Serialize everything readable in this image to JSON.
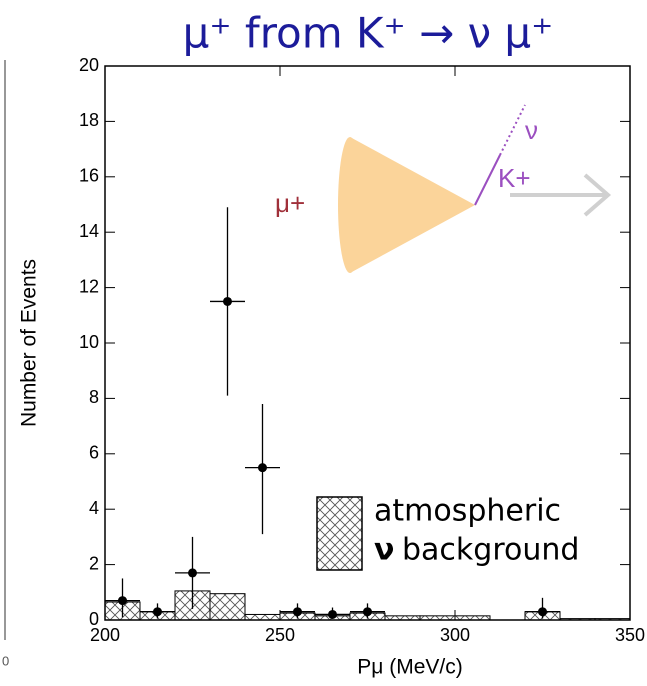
{
  "chart_data": {
    "type": "errorbar",
    "title": "μ⁺ from K⁺ → ν μ⁺",
    "x_label": "Pμ (MeV/c)",
    "y_label": "Number of Events",
    "x": [
      205,
      215,
      225,
      235,
      245,
      255,
      265,
      275,
      325
    ],
    "y": [
      0.7,
      0.3,
      1.7,
      11.5,
      5.5,
      0.3,
      0.2,
      0.3,
      0.3
    ],
    "yerr_low": [
      0.6,
      0.25,
      1.3,
      3.4,
      2.4,
      0.25,
      0.15,
      0.25,
      0.25
    ],
    "yerr_high": [
      0.8,
      0.3,
      1.3,
      3.4,
      2.3,
      0.3,
      0.25,
      0.3,
      0.5
    ],
    "xerr": 5,
    "color": "#000000",
    "background": {
      "bins": [
        200,
        210,
        220,
        230,
        240,
        250,
        260,
        270,
        280,
        290,
        300,
        310,
        320,
        330,
        340,
        350
      ],
      "counts": [
        0.65,
        0.3,
        1.05,
        0.95,
        0.2,
        0.25,
        0.15,
        0.25,
        0.15,
        0.15,
        0.15,
        0,
        0.3,
        0.05,
        0.05
      ],
      "legend": [
        "atmospheric",
        "ν",
        "background"
      ]
    },
    "xlim": [
      200,
      350
    ],
    "ylim": [
      0,
      20
    ],
    "xticks": [
      200,
      250,
      300,
      350
    ],
    "yticks": [
      0,
      2,
      4,
      6,
      8,
      10,
      12,
      14,
      16,
      18,
      20
    ],
    "title_color": "#1c1c9a",
    "annotations": [
      "μ+",
      "ν",
      "K+"
    ],
    "edge_fragment": "0"
  }
}
